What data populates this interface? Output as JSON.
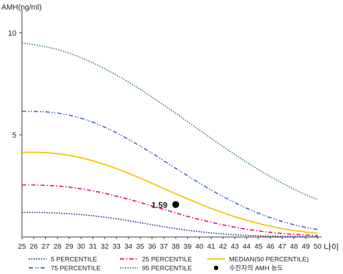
{
  "chart_data": {
    "type": "line",
    "ylabel": "AMH(ng/ml)",
    "xlabel": "나이",
    "x": [
      25,
      26,
      27,
      28,
      29,
      30,
      31,
      32,
      33,
      34,
      35,
      36,
      37,
      38,
      39,
      40,
      41,
      42,
      43,
      44,
      45,
      46,
      47,
      48,
      49,
      50
    ],
    "y_ticks": [
      5,
      10
    ],
    "ylim": [
      0,
      11
    ],
    "xlim": [
      25,
      50
    ],
    "series": [
      {
        "name": "5 PERCENTILE",
        "color": "#1a237e",
        "dash": "dotted",
        "values": [
          1.2,
          1.2,
          1.19,
          1.17,
          1.14,
          1.1,
          1.04,
          0.97,
          0.89,
          0.8,
          0.7,
          0.6,
          0.5,
          0.41,
          0.33,
          0.26,
          0.2,
          0.15,
          0.11,
          0.08,
          0.06,
          0.04,
          0.03,
          0.02,
          0.02,
          0.01
        ]
      },
      {
        "name": "25 PERCENTILE",
        "color": "#e6007e",
        "dash": "dashdot",
        "values": [
          2.55,
          2.55,
          2.53,
          2.5,
          2.44,
          2.36,
          2.26,
          2.14,
          2.0,
          1.85,
          1.69,
          1.52,
          1.35,
          1.18,
          1.01,
          0.86,
          0.72,
          0.59,
          0.48,
          0.38,
          0.3,
          0.23,
          0.17,
          0.13,
          0.1,
          0.07
        ]
      },
      {
        "name": "MEDIAN(50 PERCENTILE)",
        "color": "#f5c400",
        "dash": "solid",
        "values": [
          4.15,
          4.15,
          4.13,
          4.08,
          4.0,
          3.88,
          3.73,
          3.55,
          3.35,
          3.12,
          2.88,
          2.63,
          2.37,
          2.12,
          1.87,
          1.63,
          1.4,
          1.19,
          0.99,
          0.82,
          0.66,
          0.53,
          0.41,
          0.32,
          0.24,
          0.18
        ]
      },
      {
        "name": "75 PERCENTILE",
        "color": "#3b5fc0",
        "dash": "dashdotdot",
        "values": [
          6.15,
          6.15,
          6.13,
          6.07,
          5.97,
          5.82,
          5.62,
          5.38,
          5.1,
          4.79,
          4.45,
          4.1,
          3.73,
          3.36,
          3.0,
          2.64,
          2.3,
          1.98,
          1.68,
          1.41,
          1.16,
          0.95,
          0.76,
          0.6,
          0.47,
          0.37
        ]
      },
      {
        "name": "95 PERCENTILE",
        "color": "#2e7d4f",
        "dash": "dotted",
        "values": [
          9.5,
          9.42,
          9.32,
          9.18,
          9.0,
          8.78,
          8.53,
          8.24,
          7.93,
          7.59,
          7.23,
          6.85,
          6.46,
          6.06,
          5.65,
          5.24,
          4.83,
          4.43,
          4.04,
          3.66,
          3.3,
          2.96,
          2.64,
          2.34,
          2.07,
          1.83
        ]
      }
    ],
    "point": {
      "name": "수진자의 AMH 농도",
      "x": 38,
      "y": 1.59,
      "label": "1.59",
      "color": "#000000"
    },
    "legend_position": "bottom"
  }
}
